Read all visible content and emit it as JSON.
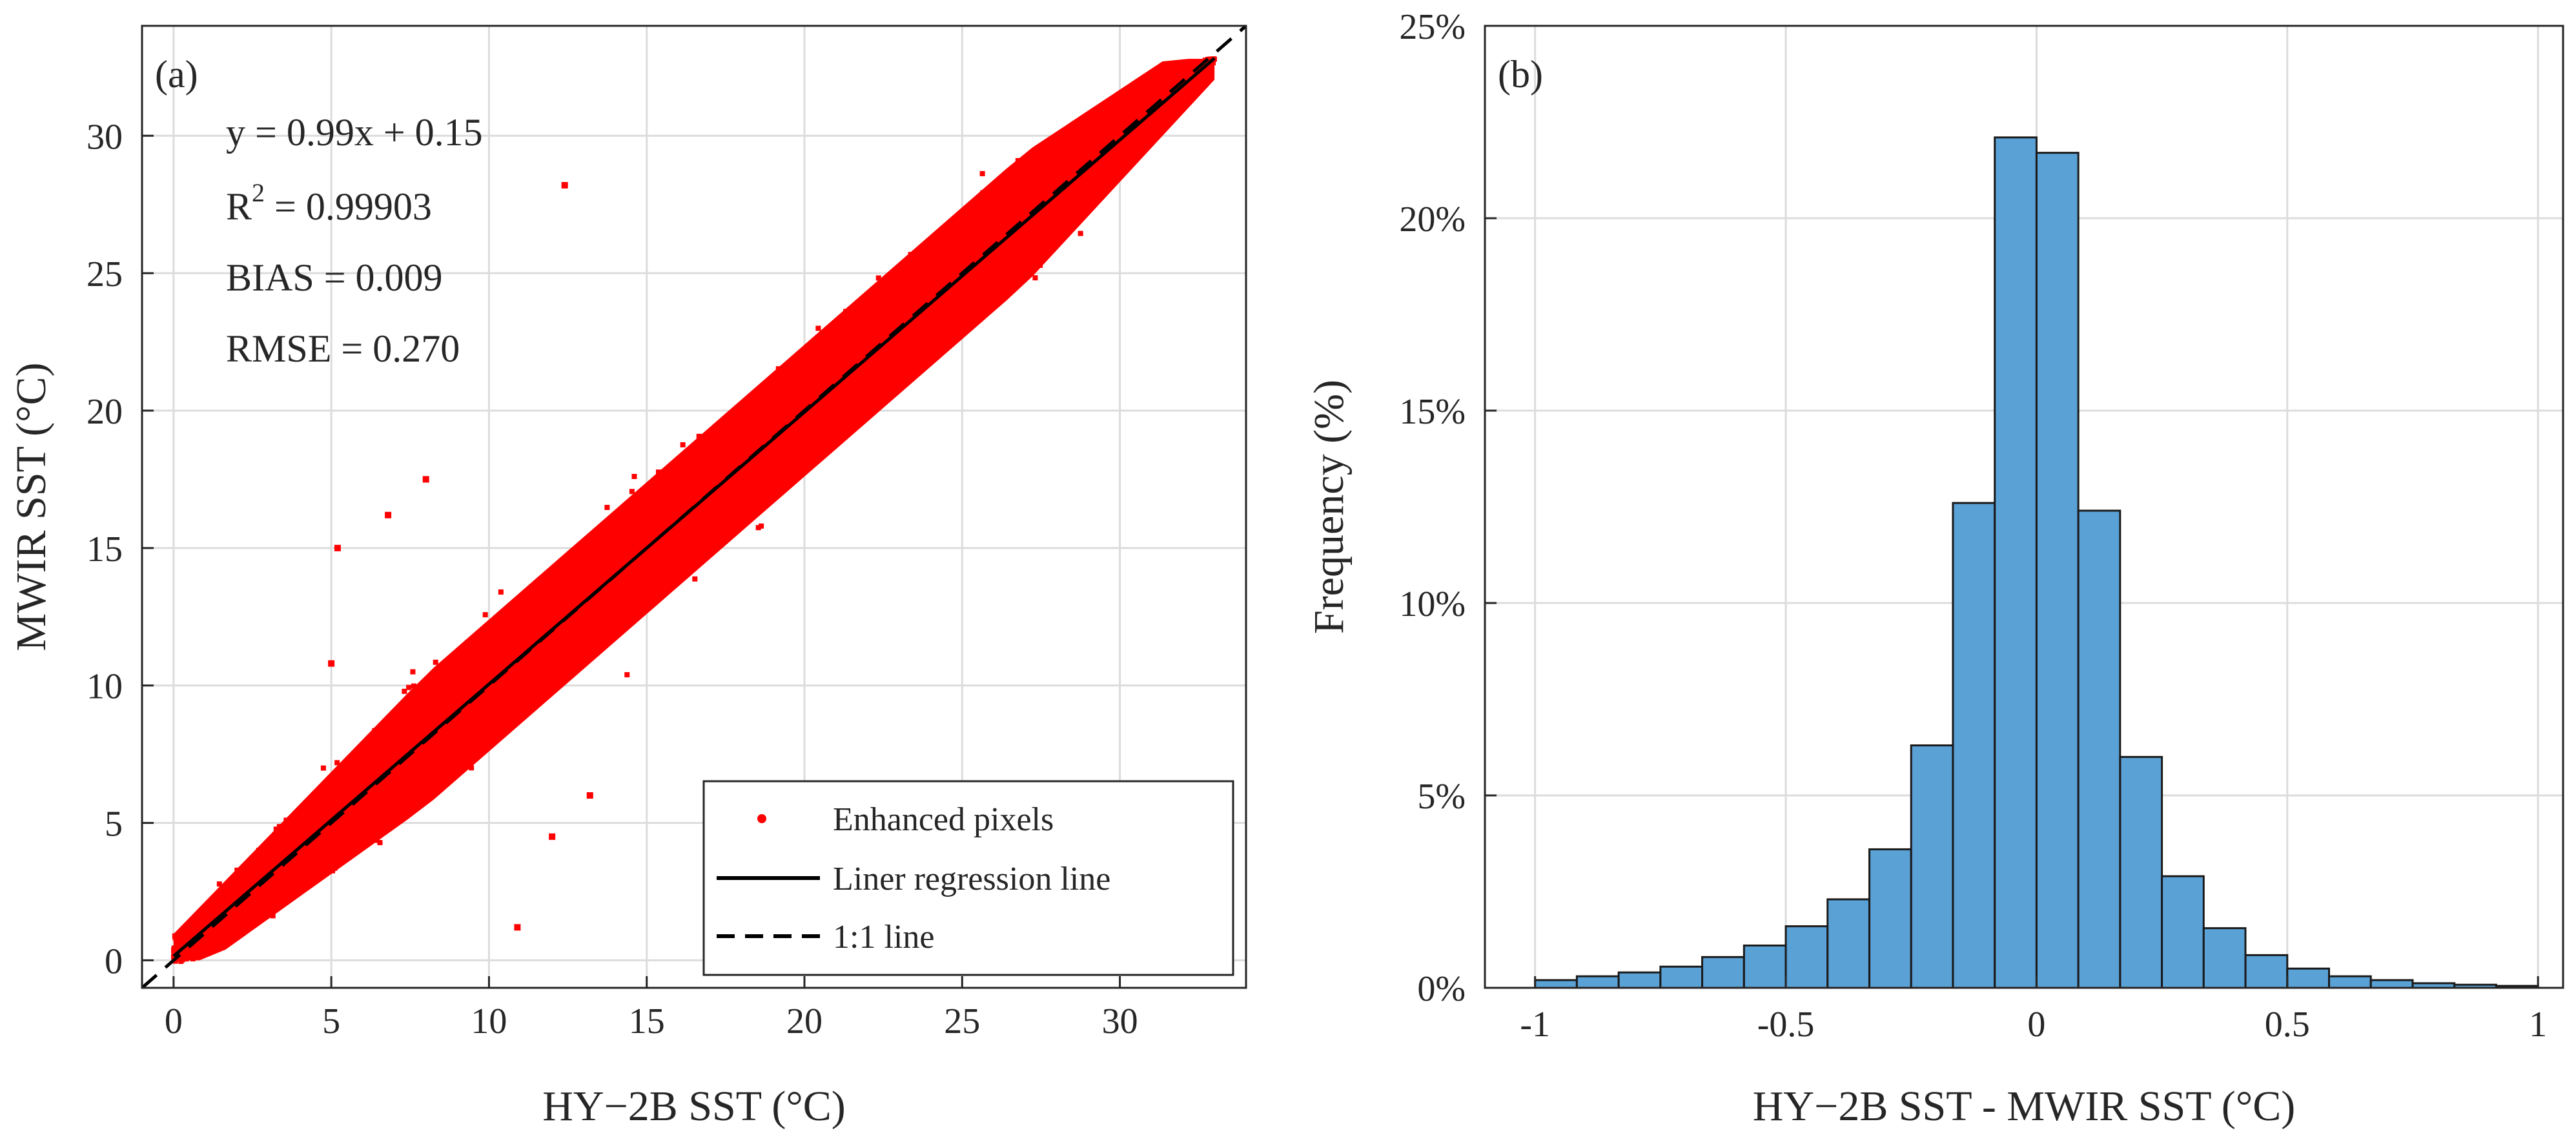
{
  "chart_data": [
    {
      "type": "scatter",
      "panel_label": "(a)",
      "xlabel": "HY−2B SST (°C)",
      "ylabel": "MWIR SST (°C)",
      "xlim": [
        -1,
        34
      ],
      "ylim": [
        -1,
        34
      ],
      "xticks": [
        0,
        5,
        10,
        15,
        20,
        25,
        30
      ],
      "yticks": [
        0,
        5,
        10,
        15,
        20,
        25,
        30
      ],
      "grid": true,
      "legend_position": "bottom-right",
      "stats": [
        "y = 0.99x + 0.15",
        "R",
        "2",
        " = 0.99903",
        "BIAS = 0.009",
        "RMSE = 0.270"
      ],
      "series": [
        {
          "name": "Enhanced pixels",
          "marker": "point",
          "color": "#ff0000",
          "description_points": [
            [
              0,
              0
            ],
            [
              5,
              5
            ],
            [
              10,
              10
            ],
            [
              15,
              15
            ],
            [
              20,
              20
            ],
            [
              25,
              25
            ],
            [
              30,
              30
            ],
            [
              33,
              33
            ]
          ],
          "spread": 3.0
        },
        {
          "name": "Liner regression line",
          "style": "solid",
          "color": "#000000",
          "slope": 0.99,
          "intercept": 0.15
        },
        {
          "name": "1:1 line",
          "style": "dashed",
          "color": "#000000",
          "slope": 1,
          "intercept": 0
        }
      ],
      "scatter_outliers": [
        [
          5.2,
          15.0
        ],
        [
          5.0,
          10.8
        ],
        [
          10.9,
          1.2
        ],
        [
          12.4,
          28.2
        ],
        [
          8.0,
          17.5
        ],
        [
          6.8,
          16.2
        ],
        [
          13.2,
          6.0
        ],
        [
          12.0,
          4.5
        ]
      ]
    },
    {
      "type": "bar",
      "panel_label": "(b)",
      "xlabel": "HY−2B SST - MWIR SST (°C)",
      "ylabel": "Frequency (%)",
      "xlim": [
        -1.1,
        1.05
      ],
      "ylim": [
        0,
        25
      ],
      "xticks": [
        -1,
        -0.5,
        0,
        0.5,
        1
      ],
      "xtick_labels": [
        "-1",
        "-0.5",
        "0",
        "0.5",
        "1"
      ],
      "yticks": [
        0,
        5,
        10,
        15,
        20,
        25
      ],
      "ytick_labels": [
        "0%",
        "5%",
        "10%",
        "15%",
        "20%",
        "25%"
      ],
      "grid": true,
      "bin_width": 0.0833,
      "bin_left_edges": [
        -1.0,
        -0.9167,
        -0.8333,
        -0.75,
        -0.6667,
        -0.5833,
        -0.5,
        -0.4167,
        -0.3333,
        -0.25,
        -0.1667,
        -0.0833,
        0.0,
        0.0833,
        0.1667,
        0.25,
        0.3333,
        0.4167,
        0.5,
        0.5833,
        0.6667,
        0.75,
        0.8333,
        0.9167
      ],
      "values": [
        0.2,
        0.3,
        0.4,
        0.55,
        0.8,
        1.1,
        1.6,
        2.3,
        3.6,
        6.3,
        12.6,
        22.1,
        21.7,
        12.4,
        6.0,
        2.9,
        1.55,
        0.85,
        0.5,
        0.3,
        0.2,
        0.12,
        0.08,
        0.05
      ],
      "bar_color": "#5aa1d6"
    }
  ]
}
